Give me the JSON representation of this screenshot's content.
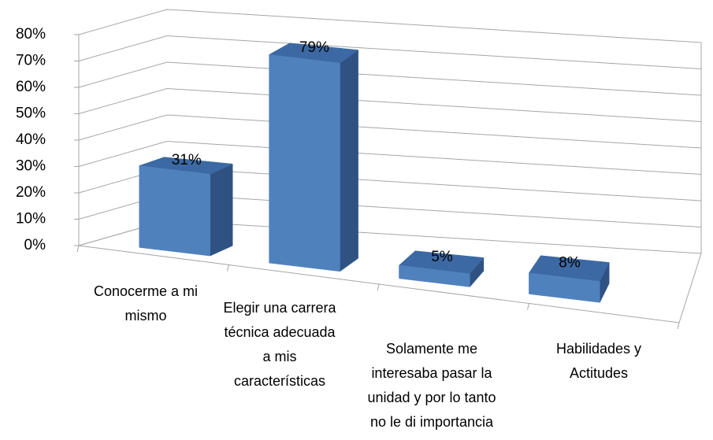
{
  "chart_data": {
    "type": "bar3d",
    "categories": [
      "Conocerme a mi mismo",
      "Elegir una carrera técnica adecuada a mis características",
      "Solamente me interesaba pasar la unidad y por lo tanto no le di importancia",
      "Habilidades y Actitudes"
    ],
    "values": [
      31,
      79,
      5,
      8
    ],
    "value_labels": [
      "31%",
      "79%",
      "5%",
      "8%"
    ],
    "color": "#4f81bd",
    "ylim": [
      0,
      80
    ],
    "yticks": [
      {
        "value": 0,
        "label": "0%"
      },
      {
        "value": 10,
        "label": "10%"
      },
      {
        "value": 20,
        "label": "20%"
      },
      {
        "value": 30,
        "label": "30%"
      },
      {
        "value": 40,
        "label": "40%"
      },
      {
        "value": 50,
        "label": "50%"
      },
      {
        "value": 60,
        "label": "60%"
      },
      {
        "value": 70,
        "label": "70%"
      },
      {
        "value": 80,
        "label": "80%"
      }
    ],
    "grid": true
  }
}
